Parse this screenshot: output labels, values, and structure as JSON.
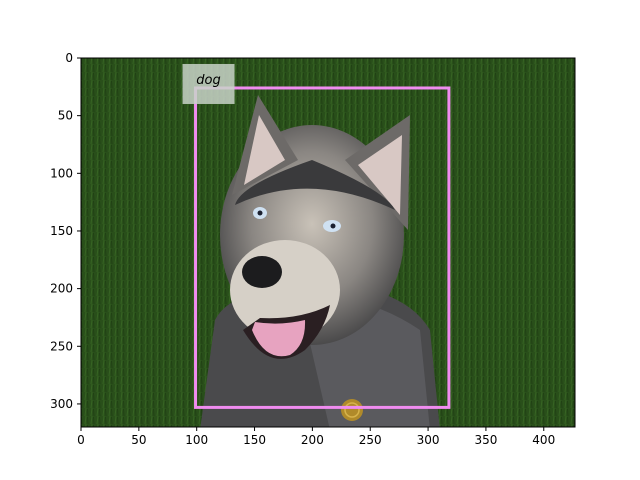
{
  "figure": {
    "image_subject": "husky-dog-on-grass",
    "x_ticks": [
      0,
      50,
      100,
      150,
      200,
      250,
      300,
      350,
      400
    ],
    "y_ticks": [
      0,
      50,
      100,
      150,
      200,
      250,
      300
    ],
    "x_range": [
      0,
      427
    ],
    "y_range": [
      0,
      320
    ],
    "colors": {
      "bbox": "#f08cf0",
      "label_bg": "#c8d2c8",
      "grass": "#2f5a1e",
      "fur_dark": "#4a4a4c",
      "fur_light": "#b9b3aa",
      "tongue": "#e7a3c0"
    }
  },
  "detection": {
    "label": "dog",
    "bbox_xyxy": [
      99,
      26,
      318,
      303
    ]
  }
}
